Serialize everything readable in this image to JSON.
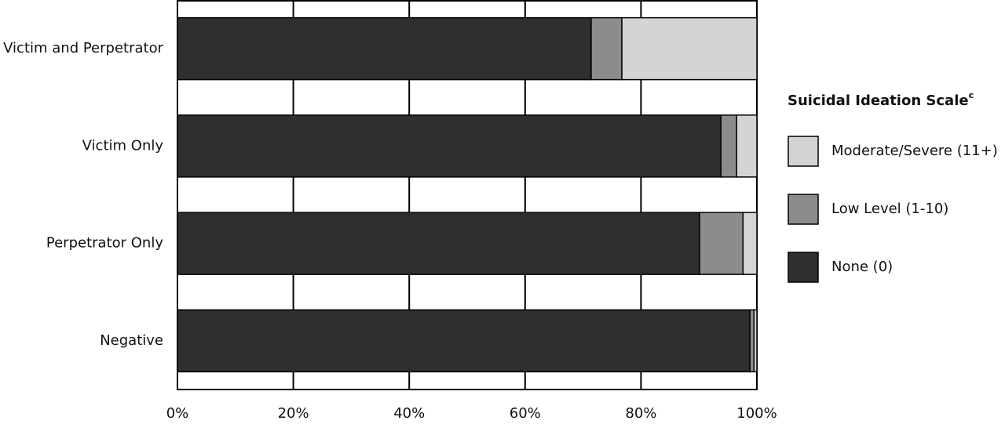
{
  "chart_data": {
    "type": "stacked-barh",
    "categories": [
      "Victim and Perpetrator",
      "Victim Only",
      "Perpetrator Only",
      "Negative"
    ],
    "series": [
      {
        "name": "None (0)",
        "color": "#2f2f2f",
        "values": [
          71.4,
          93.8,
          90.1,
          98.8
        ]
      },
      {
        "name": "Low Level (1-10)",
        "color": "#8c8c8c",
        "values": [
          5.3,
          2.7,
          7.5,
          0.7
        ]
      },
      {
        "name": "Moderate/Severe (11+)",
        "color": "#d4d4d4",
        "values": [
          23.3,
          3.5,
          2.4,
          0.5
        ]
      }
    ],
    "xlim": [
      0,
      100
    ],
    "xticks": [
      {
        "value": 0,
        "label": "0%"
      },
      {
        "value": 20,
        "label": "20%"
      },
      {
        "value": 40,
        "label": "40%"
      },
      {
        "value": 60,
        "label": "60%"
      },
      {
        "value": 80,
        "label": "80%"
      },
      {
        "value": 100,
        "label": "100%"
      }
    ],
    "grid": true,
    "legend_title": "Suicidal Ideation Scale",
    "legend_title_sup": "c",
    "legend": "right"
  }
}
